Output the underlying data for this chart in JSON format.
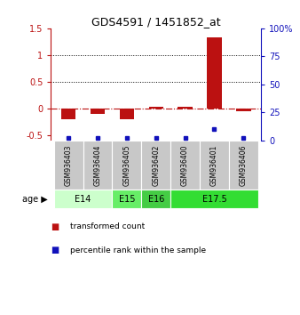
{
  "title": "GDS4591 / 1451852_at",
  "samples": [
    "GSM936403",
    "GSM936404",
    "GSM936405",
    "GSM936402",
    "GSM936400",
    "GSM936401",
    "GSM936406"
  ],
  "red_values": [
    -0.2,
    -0.1,
    -0.2,
    0.03,
    0.03,
    1.33,
    -0.05
  ],
  "blue_percentiles": [
    2,
    2,
    2,
    2,
    2,
    10,
    2
  ],
  "age_groups": [
    {
      "label": "E14",
      "start": 0,
      "end": 2,
      "color": "#ccffcc"
    },
    {
      "label": "E15",
      "start": 2,
      "end": 3,
      "color": "#66ee66"
    },
    {
      "label": "E16",
      "start": 3,
      "end": 4,
      "color": "#44cc44"
    },
    {
      "label": "E17.5",
      "start": 4,
      "end": 7,
      "color": "#33dd33"
    }
  ],
  "ylim_left": [
    -0.6,
    1.5
  ],
  "ylim_right": [
    0,
    100
  ],
  "yticks_left": [
    -0.5,
    0,
    0.5,
    1.0,
    1.5
  ],
  "ytick_labels_left": [
    "-0.5",
    "0",
    "0.5",
    "1",
    "1.5"
  ],
  "yticks_right": [
    0,
    25,
    50,
    75,
    100
  ],
  "ytick_labels_right": [
    "0",
    "25",
    "50",
    "75",
    "100%"
  ],
  "hlines_dotted": [
    0.5,
    1.0
  ],
  "red_color": "#bb1111",
  "blue_color": "#1111bb",
  "bar_width": 0.5,
  "sample_box_color": "#c8c8c8",
  "legend_items": [
    {
      "color": "#bb1111",
      "label": "transformed count"
    },
    {
      "color": "#1111bb",
      "label": "percentile rank within the sample"
    }
  ]
}
